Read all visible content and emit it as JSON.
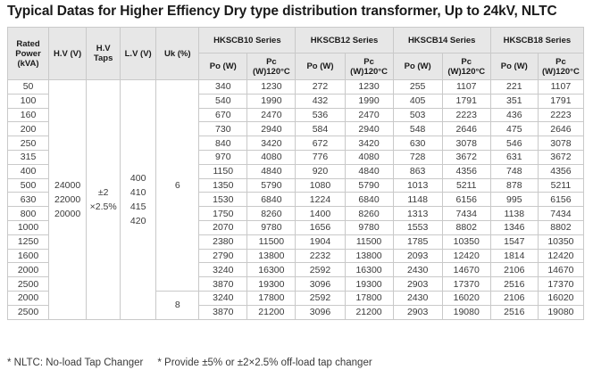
{
  "title": "Typical Datas for Higher Effiency Dry type distribution transformer, Up to 24kV, NLTC",
  "headers": {
    "rated_power": "Rated Power (kVA)",
    "hv": "H.V (V)",
    "hv_taps": "H.V Taps",
    "lv": "L.V (V)",
    "uk": "Uk (%)",
    "series": [
      "HKSCB10 Series",
      "HKSCB12 Series",
      "HKSCB14 Series",
      "HKSCB18 Series"
    ],
    "po": "Po (W)",
    "pc": "Pc (W)120°C"
  },
  "merged": {
    "hv": "24000\n22000\n20000",
    "hv_taps": "±2\n×2.5%",
    "lv": "400\n410\n415\n420",
    "uk_main": "6",
    "uk_high": "8"
  },
  "rows": [
    {
      "kva": "50",
      "v": [
        "340",
        "1230",
        "272",
        "1230",
        "255",
        "1107",
        "221",
        "1107"
      ]
    },
    {
      "kva": "100",
      "v": [
        "540",
        "1990",
        "432",
        "1990",
        "405",
        "1791",
        "351",
        "1791"
      ]
    },
    {
      "kva": "160",
      "v": [
        "670",
        "2470",
        "536",
        "2470",
        "503",
        "2223",
        "436",
        "2223"
      ]
    },
    {
      "kva": "200",
      "v": [
        "730",
        "2940",
        "584",
        "2940",
        "548",
        "2646",
        "475",
        "2646"
      ]
    },
    {
      "kva": "250",
      "v": [
        "840",
        "3420",
        "672",
        "3420",
        "630",
        "3078",
        "546",
        "3078"
      ]
    },
    {
      "kva": "315",
      "v": [
        "970",
        "4080",
        "776",
        "4080",
        "728",
        "3672",
        "631",
        "3672"
      ]
    },
    {
      "kva": "400",
      "v": [
        "1150",
        "4840",
        "920",
        "4840",
        "863",
        "4356",
        "748",
        "4356"
      ]
    },
    {
      "kva": "500",
      "v": [
        "1350",
        "5790",
        "1080",
        "5790",
        "1013",
        "5211",
        "878",
        "5211"
      ]
    },
    {
      "kva": "630",
      "v": [
        "1530",
        "6840",
        "1224",
        "6840",
        "1148",
        "6156",
        "995",
        "6156"
      ]
    },
    {
      "kva": "800",
      "v": [
        "1750",
        "8260",
        "1400",
        "8260",
        "1313",
        "7434",
        "1138",
        "7434"
      ]
    },
    {
      "kva": "1000",
      "v": [
        "2070",
        "9780",
        "1656",
        "9780",
        "1553",
        "8802",
        "1346",
        "8802"
      ]
    },
    {
      "kva": "1250",
      "v": [
        "2380",
        "11500",
        "1904",
        "11500",
        "1785",
        "10350",
        "1547",
        "10350"
      ]
    },
    {
      "kva": "1600",
      "v": [
        "2790",
        "13800",
        "2232",
        "13800",
        "2093",
        "12420",
        "1814",
        "12420"
      ]
    },
    {
      "kva": "2000",
      "v": [
        "3240",
        "16300",
        "2592",
        "16300",
        "2430",
        "14670",
        "2106",
        "14670"
      ]
    },
    {
      "kva": "2500",
      "v": [
        "3870",
        "19300",
        "3096",
        "19300",
        "2903",
        "17370",
        "2516",
        "17370"
      ]
    },
    {
      "kva": "2000",
      "v": [
        "3240",
        "17800",
        "2592",
        "17800",
        "2430",
        "16020",
        "2106",
        "16020"
      ]
    },
    {
      "kva": "2500",
      "v": [
        "3870",
        "21200",
        "3096",
        "21200",
        "2903",
        "19080",
        "2516",
        "19080"
      ]
    }
  ],
  "footnotes": [
    "* NLTC: No-load Tap Changer",
    "* Provide ±5% or ±2×2.5% off-load tap changer"
  ]
}
